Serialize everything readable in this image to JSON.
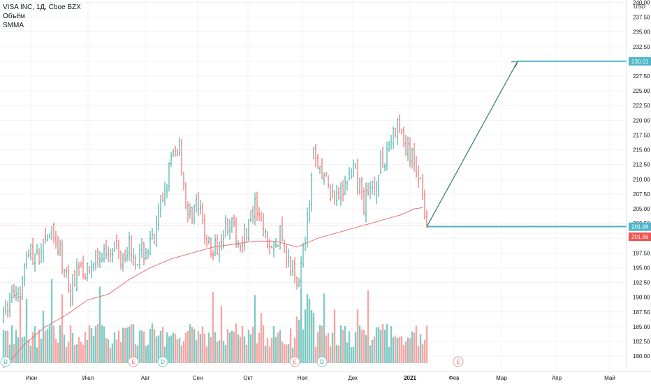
{
  "header": {
    "symbol_line": "VISA INC, 1Д, Cboe BZX",
    "volume_label": "Объём",
    "smma_label": "SMMA",
    "currency": "USD"
  },
  "colors": {
    "up": "#26a69a",
    "down": "#ef5350",
    "vol_up": "#80cbc4",
    "vol_down": "#f7a6a4",
    "smma": "#e57373",
    "projection_arrow": "#2e7d6e",
    "level_line": "#4db6c9",
    "price_tag_bg": "#ef5350",
    "level_tag_bg": "#4db6c9",
    "grid": "#f0f3fa"
  },
  "chart_data": {
    "type": "candlestick",
    "x_labels": [
      "Июн",
      "Июл",
      "Авг",
      "Сен",
      "Окт",
      "Ноя",
      "Дек",
      "2021",
      "Фев",
      "Мар",
      "Апр",
      "Май"
    ],
    "y_ticks": [
      180,
      182.5,
      185,
      187.5,
      190,
      192.5,
      195,
      197.5,
      200,
      202.5,
      205,
      207.5,
      210,
      212.5,
      215,
      217.5,
      220,
      222.5,
      225,
      227.5,
      230,
      232.5,
      235,
      237.5,
      240
    ],
    "y_tick_labels": [
      "180.00",
      "182.50",
      "185.00",
      "187.50",
      "190.00",
      "192.50",
      "195.00",
      "197.50",
      "200.00",
      "202.50",
      "205.00",
      "207.50",
      "210.00",
      "212.50",
      "215.00",
      "217.50",
      "220.00",
      "222.50",
      "225.00",
      "227.50",
      "230.00",
      "232.50",
      "235.00",
      "237.50",
      "240.00"
    ],
    "ylim": [
      178,
      241
    ],
    "price_anchors": [
      [
        0,
        186.5
      ],
      [
        4,
        190.5
      ],
      [
        8,
        192
      ],
      [
        12,
        198
      ],
      [
        16,
        196.5
      ],
      [
        20,
        201
      ],
      [
        24,
        200.5
      ],
      [
        28,
        196
      ],
      [
        32,
        191
      ],
      [
        36,
        196
      ],
      [
        40,
        194
      ],
      [
        44,
        196.5
      ],
      [
        48,
        197.5
      ],
      [
        52,
        199
      ],
      [
        56,
        197
      ],
      [
        60,
        199
      ],
      [
        64,
        196.5
      ],
      [
        68,
        198
      ],
      [
        72,
        199.5
      ],
      [
        76,
        207
      ],
      [
        80,
        213
      ],
      [
        84,
        216
      ],
      [
        88,
        203
      ],
      [
        92,
        206
      ],
      [
        96,
        201
      ],
      [
        100,
        197
      ],
      [
        104,
        201
      ],
      [
        108,
        203
      ],
      [
        112,
        199
      ],
      [
        116,
        201.5
      ],
      [
        120,
        205
      ],
      [
        124,
        201
      ],
      [
        128,
        198
      ],
      [
        132,
        200.5
      ],
      [
        136,
        196
      ],
      [
        140,
        192
      ],
      [
        144,
        199
      ],
      [
        148,
        213.5
      ],
      [
        152,
        211
      ],
      [
        156,
        208
      ],
      [
        160,
        206
      ],
      [
        164,
        210
      ],
      [
        168,
        211
      ],
      [
        172,
        206
      ],
      [
        176,
        208
      ],
      [
        180,
        212
      ],
      [
        184,
        216
      ],
      [
        188,
        219
      ],
      [
        192,
        215
      ],
      [
        196,
        213
      ],
      [
        200,
        208.5
      ],
      [
        202,
        202
      ]
    ],
    "volume_note": "Volume bars (unscaled, no axis)",
    "smma_anchors": [
      [
        0,
        178
      ],
      [
        10,
        182
      ],
      [
        20,
        185
      ],
      [
        30,
        187
      ],
      [
        40,
        189.5
      ],
      [
        50,
        190.5
      ],
      [
        60,
        193
      ],
      [
        70,
        195
      ],
      [
        80,
        196.5
      ],
      [
        90,
        197.5
      ],
      [
        100,
        198.5
      ],
      [
        110,
        199
      ],
      [
        120,
        199.5
      ],
      [
        130,
        199.5
      ],
      [
        140,
        198.5
      ],
      [
        150,
        200
      ],
      [
        160,
        201
      ],
      [
        170,
        202
      ],
      [
        180,
        203
      ],
      [
        190,
        204
      ],
      [
        196,
        205
      ],
      [
        200,
        205.2
      ]
    ],
    "event_markers": [
      {
        "label": "D",
        "bar": 1
      },
      {
        "label": "E",
        "bar": 62
      },
      {
        "label": "D",
        "bar": 76
      },
      {
        "label": "E",
        "bar": 139
      },
      {
        "label": "D",
        "bar": 152
      },
      {
        "label": "E",
        "bar": 217
      }
    ],
    "projection": {
      "from": 201.96,
      "to": 230.01
    },
    "current_price": 201.86,
    "level_labels": {
      "target": "230.01",
      "start": "201.96",
      "current": "201.86"
    }
  }
}
